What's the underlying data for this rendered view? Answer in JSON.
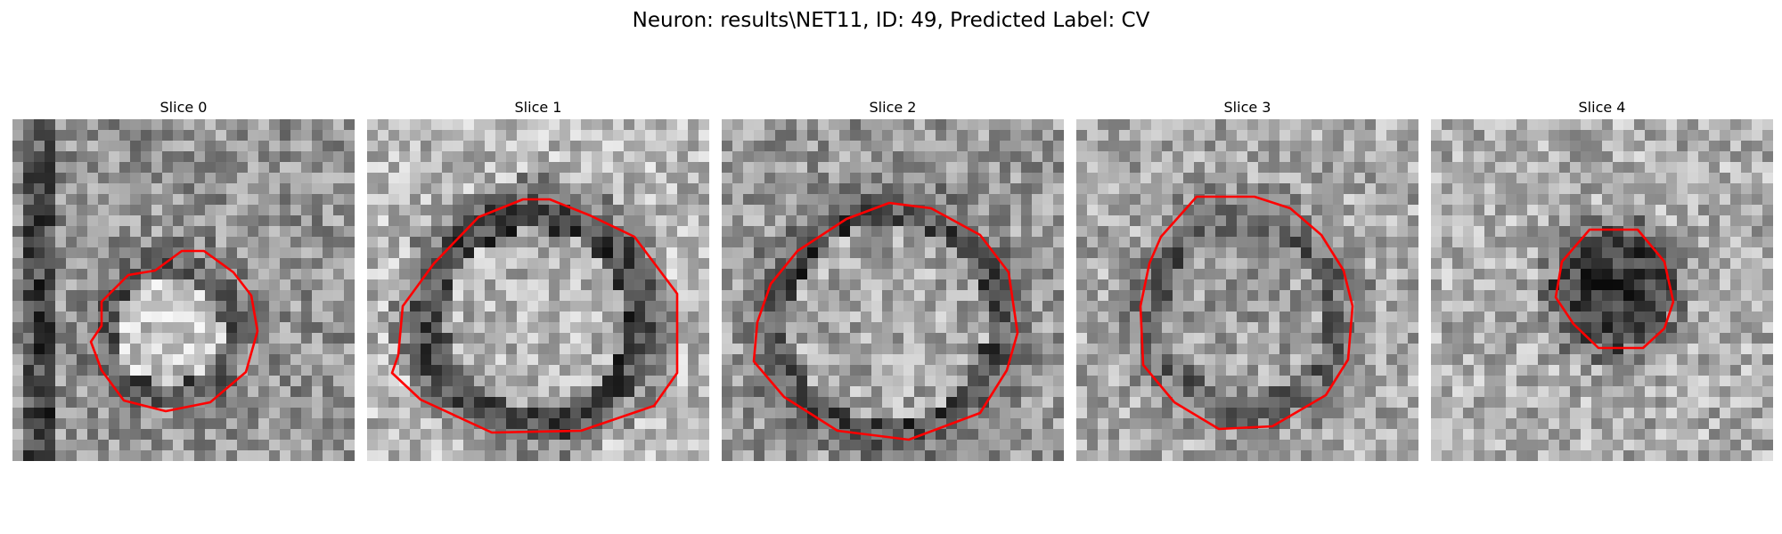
{
  "title": "Neuron: results\\NET11, ID: 49, Predicted Label: CV",
  "colors": {
    "background": "#ffffff",
    "contour": "#ff0000",
    "image_colormap": "grayscale"
  },
  "panels": [
    {
      "title": "Slice 0"
    },
    {
      "title": "Slice 1"
    },
    {
      "title": "Slice 2"
    },
    {
      "title": "Slice 3"
    },
    {
      "title": "Slice 4"
    }
  ]
}
